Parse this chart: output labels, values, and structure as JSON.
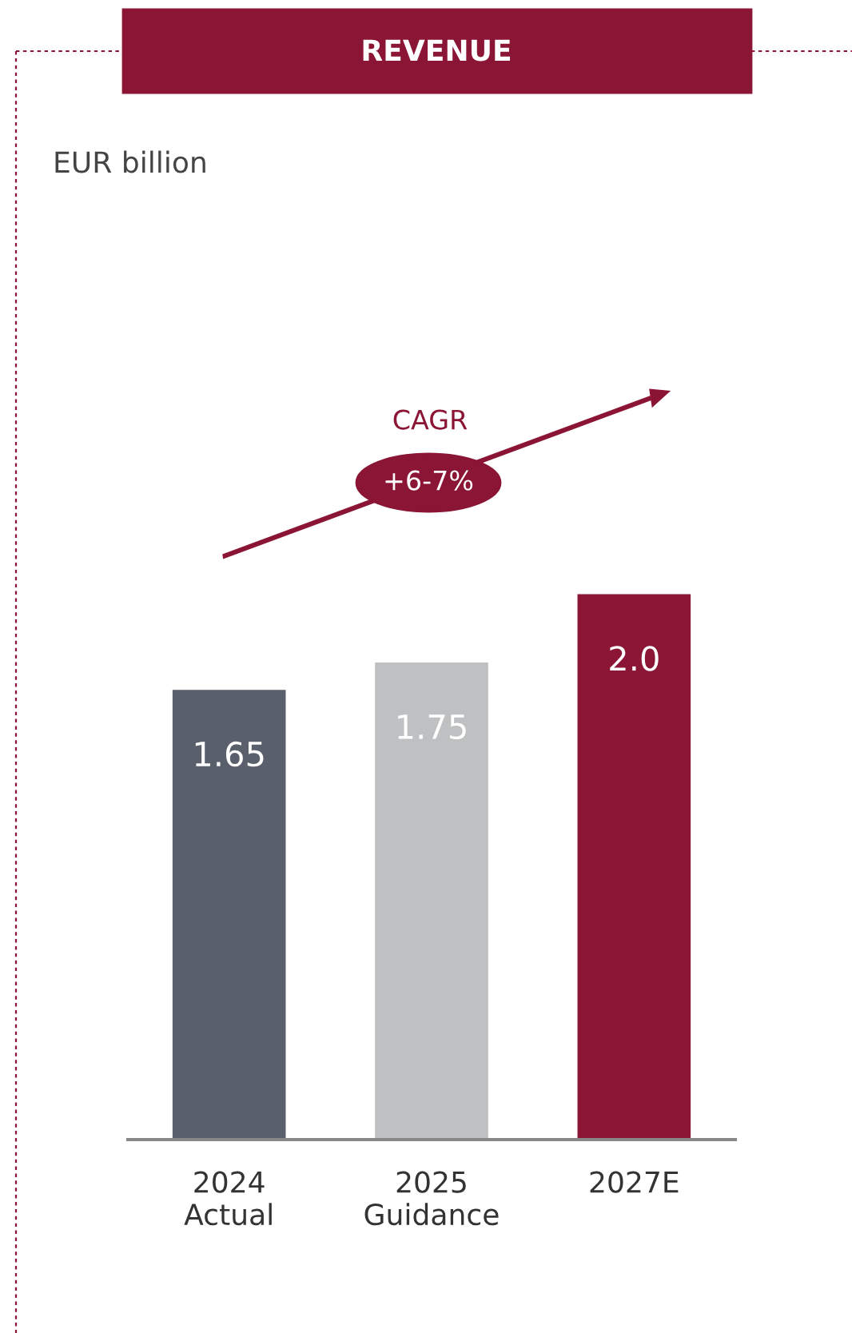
{
  "chart_data": {
    "type": "bar",
    "title": "REVENUE",
    "subtitle": "EUR billion",
    "categories": [
      "2024\nActual",
      "2025\nGuidance",
      "2027E"
    ],
    "values": [
      1.65,
      1.75,
      2.0
    ],
    "colors": [
      "#5a606b",
      "#bfc0c2",
      "#8b1535"
    ],
    "value_labels": [
      "1.65",
      "1.75",
      "2.0"
    ],
    "tick_labels": "x",
    "grid": false,
    "legend": false,
    "annotations": [
      "CAGR",
      "+6-7%"
    ]
  }
}
